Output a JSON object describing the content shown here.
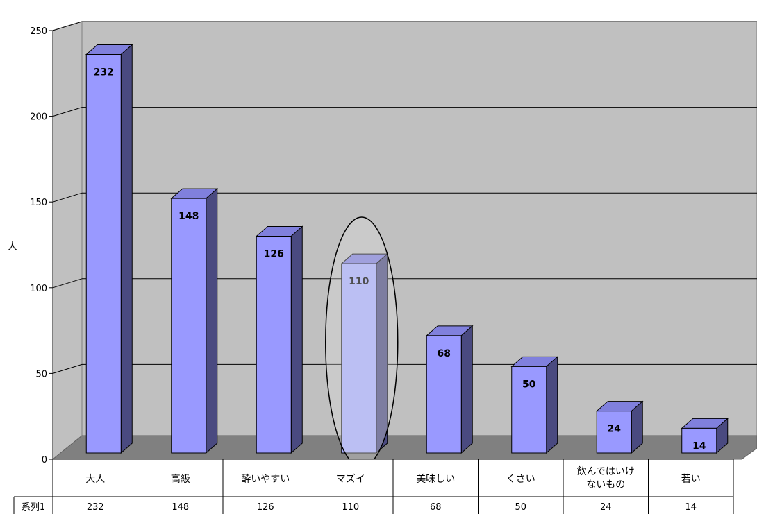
{
  "chart_data": {
    "type": "bar",
    "categories": [
      "大人",
      "高級",
      "酔いやすい",
      "マズイ",
      "美味しい",
      "くさい",
      "飲んではいけないもの",
      "若い"
    ],
    "category_lines": [
      [
        "大人"
      ],
      [
        "高級"
      ],
      [
        "酔いやすい"
      ],
      [
        "マズイ"
      ],
      [
        "美味しい"
      ],
      [
        "くさい"
      ],
      [
        "飲んではいけ",
        "ないもの"
      ],
      [
        "若い"
      ]
    ],
    "series": [
      {
        "name": "系列1",
        "values": [
          232,
          148,
          126,
          110,
          68,
          50,
          24,
          14
        ]
      }
    ],
    "data_labels": [
      "232",
      "148",
      "126",
      "110",
      "68",
      "50",
      "24",
      "14"
    ],
    "table_values": [
      "232",
      "148",
      "126",
      "110",
      "68",
      "50",
      "24",
      "14"
    ],
    "highlighted_category": "マズイ",
    "ylabel": "人",
    "ylim": [
      0,
      250
    ],
    "yticks": [
      0,
      50,
      100,
      150,
      200,
      250
    ],
    "ytick_labels": [
      "0",
      "50",
      "100",
      "150",
      "200",
      "250"
    ],
    "grid": true,
    "colors": {
      "bar_front": "#9999ff",
      "bar_front_highlight": "#aab0ff",
      "bar_side": "#4a4a80",
      "bar_top": "#8080dd",
      "wall": "#c0c0c0",
      "floor": "#808080",
      "gridline": "#000000"
    }
  }
}
